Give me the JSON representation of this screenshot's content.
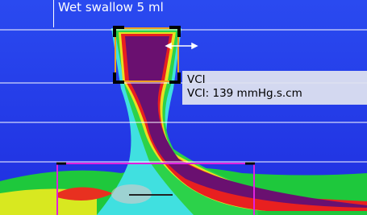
{
  "header": {
    "title": "Wet swallow 5 ml"
  },
  "tooltip": {
    "name": "VCI",
    "value_text": "VCI: 139 mmHg.s.cm"
  }
}
